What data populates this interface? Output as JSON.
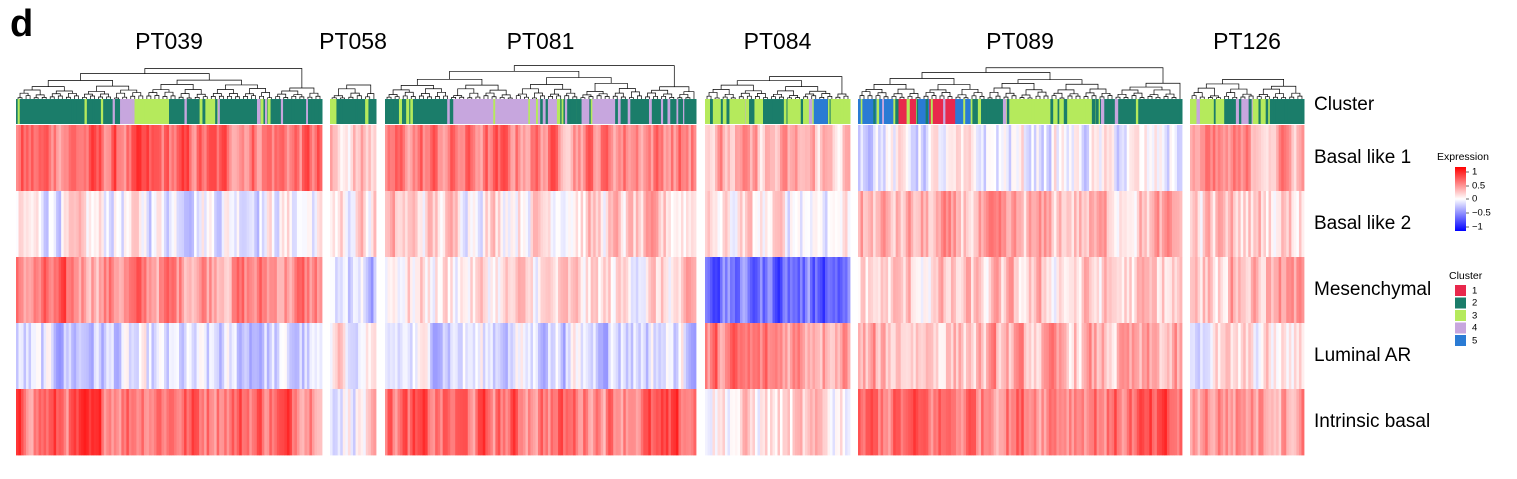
{
  "panel_label": "d",
  "chart_data": {
    "type": "heatmap",
    "title": "",
    "samples": [
      {
        "name": "PT039",
        "cluster_runs": [
          [
            2,
            0.34
          ],
          [
            4,
            0.04
          ],
          [
            3,
            0.12
          ],
          [
            2,
            0.1
          ],
          [
            3,
            0.06
          ],
          [
            2,
            0.34
          ]
        ],
        "dendrogram": true
      },
      {
        "name": "PT058",
        "cluster_runs": [
          [
            3,
            0.14
          ],
          [
            2,
            0.86
          ]
        ],
        "dendrogram": true
      },
      {
        "name": "PT081",
        "cluster_runs": [
          [
            2,
            0.2
          ],
          [
            4,
            0.36
          ],
          [
            2,
            0.06
          ],
          [
            4,
            0.12
          ],
          [
            2,
            0.26
          ]
        ],
        "dendrogram": true
      },
      {
        "name": "PT084",
        "cluster_runs": [
          [
            3,
            0.4
          ],
          [
            2,
            0.15
          ],
          [
            3,
            0.2
          ],
          [
            5,
            0.1
          ],
          [
            3,
            0.15
          ]
        ],
        "dendrogram": true
      },
      {
        "name": "PT089",
        "cluster_runs": [
          [
            5,
            0.12
          ],
          [
            1,
            0.06
          ],
          [
            5,
            0.04
          ],
          [
            1,
            0.08
          ],
          [
            5,
            0.05
          ],
          [
            2,
            0.1
          ],
          [
            3,
            0.3
          ],
          [
            2,
            0.25
          ]
        ],
        "dendrogram": true
      },
      {
        "name": "PT126",
        "cluster_runs": [
          [
            3,
            0.3
          ],
          [
            2,
            0.15
          ],
          [
            4,
            0.1
          ],
          [
            3,
            0.15
          ],
          [
            2,
            0.3
          ]
        ],
        "dendrogram": true
      }
    ],
    "annotation_row": "Cluster",
    "rows": [
      "Basal like 1",
      "Basal like 2",
      "Mesenchymal",
      "Luminal AR",
      "Intrinsic basal"
    ],
    "mean_expression": [
      [
        0.55,
        0.2,
        0.5,
        0.25,
        -0.05,
        0.35
      ],
      [
        0.0,
        0.1,
        0.15,
        0.05,
        0.25,
        0.2
      ],
      [
        0.45,
        -0.15,
        0.1,
        -0.55,
        0.15,
        0.3
      ],
      [
        -0.2,
        0.1,
        -0.1,
        0.45,
        0.25,
        0.05
      ],
      [
        0.6,
        0.05,
        0.55,
        0.1,
        0.55,
        0.45
      ]
    ],
    "legend_expression": {
      "title": "Expression",
      "ticks": [
        "1",
        "0.5",
        "0",
        "−0.5",
        "−1"
      ],
      "range": [
        -1,
        1
      ],
      "colors": {
        "high": "#ff0000",
        "mid": "#ffffff",
        "low": "#0000ff"
      }
    },
    "legend_cluster": {
      "title": "Cluster",
      "items": [
        {
          "label": "1",
          "color": "#e8284c"
        },
        {
          "label": "2",
          "color": "#1b7d6a"
        },
        {
          "label": "3",
          "color": "#b5ea5c"
        },
        {
          "label": "4",
          "color": "#c7a6de"
        },
        {
          "label": "5",
          "color": "#2a7bd4"
        }
      ]
    }
  }
}
